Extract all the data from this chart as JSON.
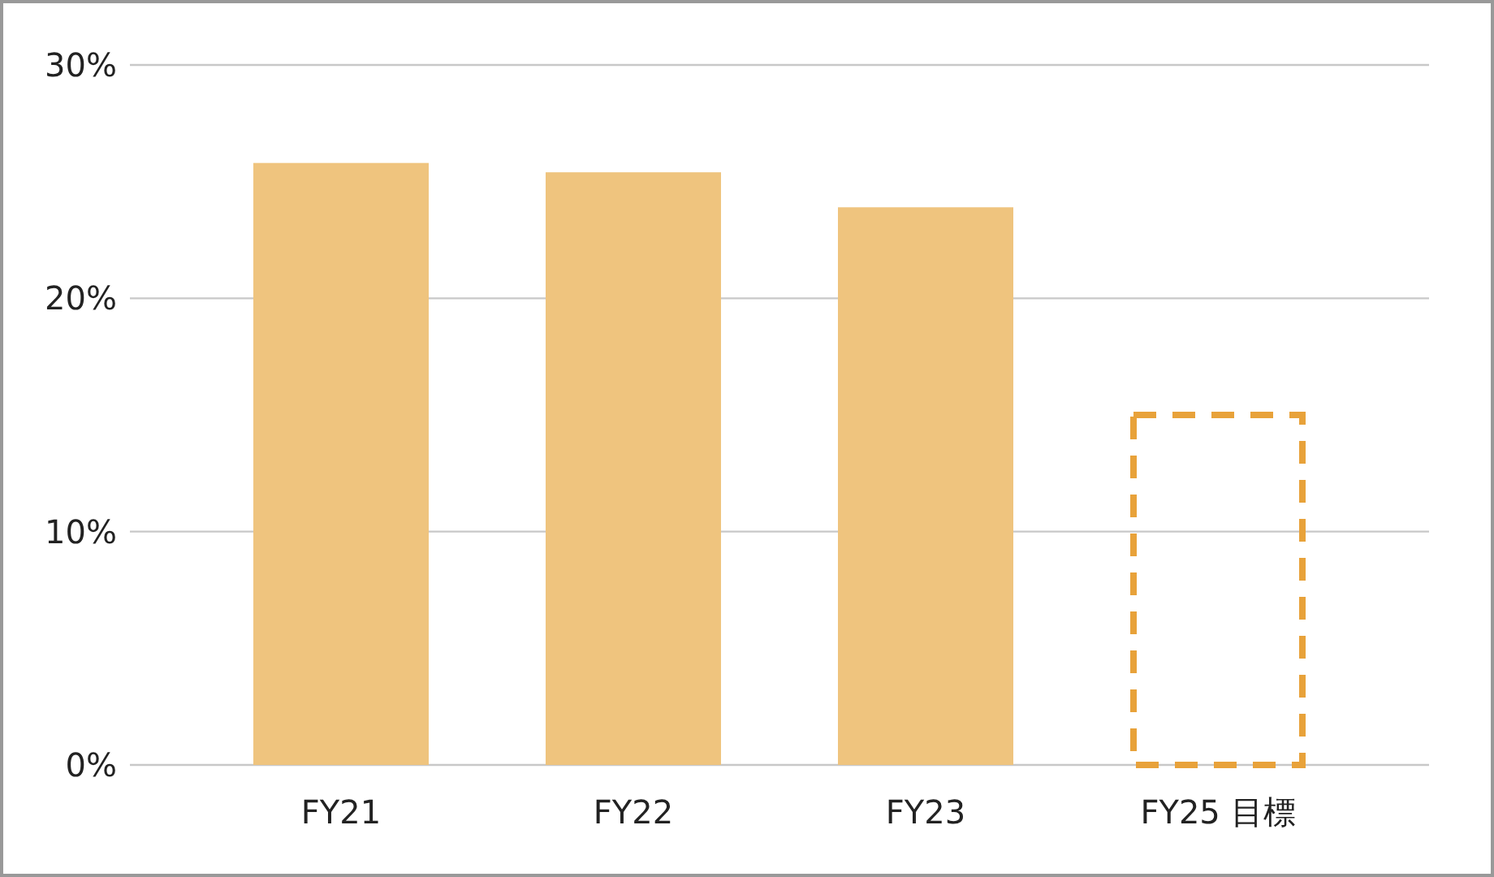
{
  "chart_data": {
    "type": "bar",
    "stacked": true,
    "categories": [
      "FY21",
      "FY22",
      "FY23",
      "FY25 目標"
    ],
    "series": [
      {
        "color": "#efc47e",
        "values": [
          25.8,
          25.4,
          23.9,
          null
        ]
      },
      {
        "color": "#e8a23a",
        "line_style": "dashed",
        "values": [
          null,
          null,
          null,
          15
        ]
      }
    ],
    "ylim": [
      0,
      30
    ],
    "yticks": [
      {
        "value": 0,
        "label": "0%"
      },
      {
        "value": 10,
        "label": "10%"
      },
      {
        "value": 20,
        "label": "20%"
      },
      {
        "value": 30,
        "label": "30%"
      }
    ],
    "grid": "y"
  }
}
